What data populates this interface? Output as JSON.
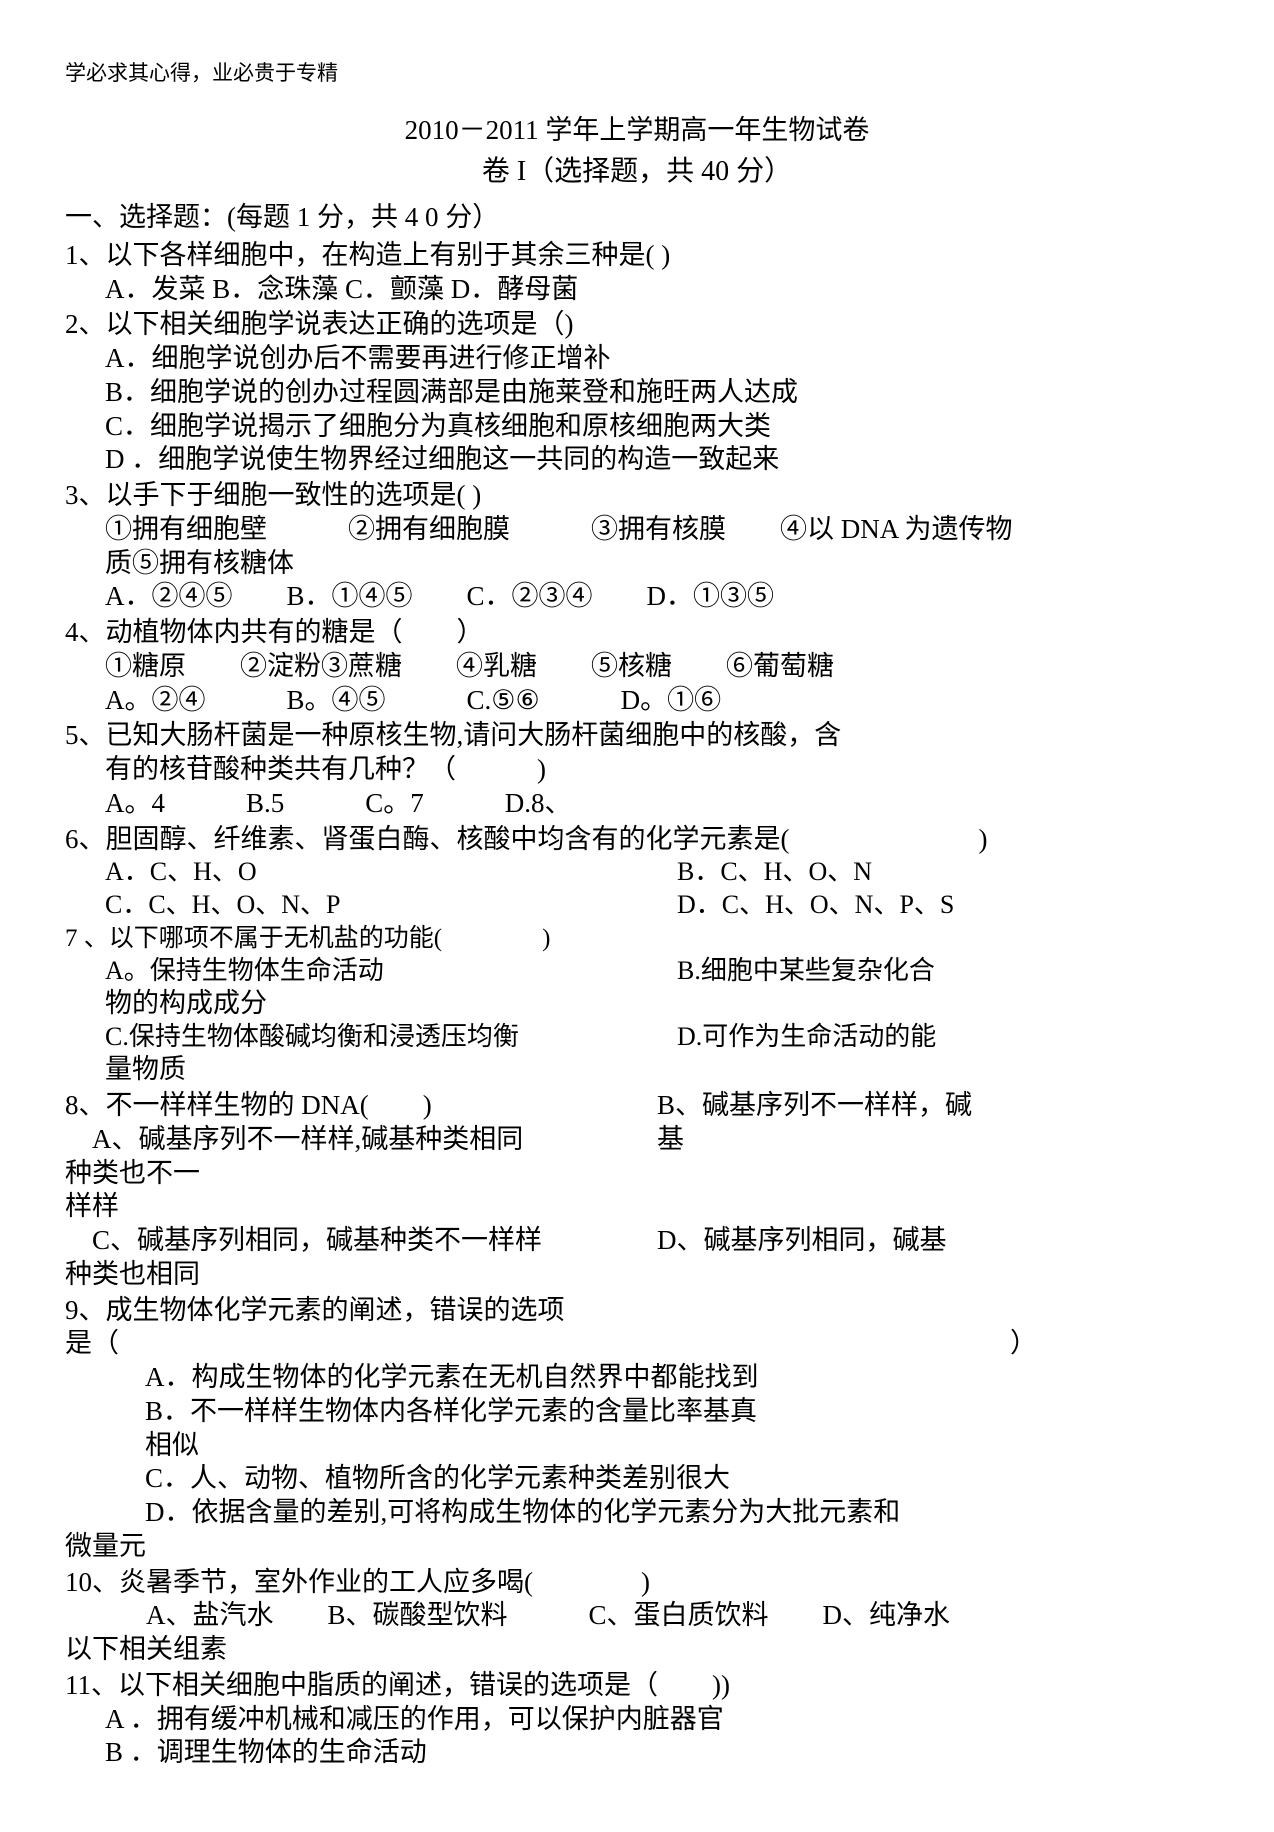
{
  "header_note": "学必求其心得，业必贵于专精",
  "title_main": "2010－2011 学年上学期高一年生物试卷",
  "title_sub": "卷 I（选择题，共 40 分）",
  "section_header": "一、选择题：(每题 1 分，共 4 0 分）",
  "q1": {
    "stem": "1、以下各样细胞中，在构造上有别于其余三种是( )",
    "opts": "A．发菜 B．念珠藻 C．颤藻 D．酵母菌"
  },
  "q2": {
    "stem": "2、以下相关细胞学说表达正确的选项是（)",
    "a": "A．细胞学说创办后不需要再进行修正增补",
    "b": "B．细胞学说的创办过程圆满部是由施莱登和施旺两人达成",
    "c": "C．细胞学说揭示了细胞分为真核细胞和原核细胞两大类",
    "d": "D ．细胞学说使生物界经过细胞这一共同的构造一致起来"
  },
  "q3": {
    "stem": "3、以手下于细胞一致性的选项是( )",
    "items": "①拥有细胞壁   ②拥有细胞膜   ③拥有核膜  ④以 DNA 为遗传物",
    "items2": "质⑤拥有核糖体",
    "opts": "A．②④⑤  B．①④⑤  C．②③④  D．①③⑤"
  },
  "q4": {
    "stem": "4、动植物体内共有的糖是（  ）",
    "items": "①糖原  ②淀粉③蔗糖  ④乳糖  ⑤核糖  ⑥葡萄糖",
    "opts": "A。②④   B。④⑤   C.⑤⑥   D。①⑥"
  },
  "q5": {
    "stem1": "5、已知大肠杆菌是一种原核生物,请问大肠杆菌细胞中的核酸，含",
    "stem2": "有的核苷酸种类共有几种？（   )",
    "opts": "A。4   B.5   C。7   D.8、"
  },
  "q6": {
    "stem": "6、胆固醇、纤维素、肾蛋白酶、核酸中均含有的化学元素是(       )",
    "ab": {
      "a": "A．C、H、O",
      "b": "B．C、H、O、N"
    },
    "cd": {
      "c": "C．C、H、O、N、P",
      "d": "D．C、H、O、N、P、S"
    }
  },
  "q7": {
    "stem": "7 、以下哪项不属于无机盐的功能(    )",
    "ab": {
      "a": "A。保持生物体生命活动",
      "b": "B.细胞中某些复杂化合"
    },
    "ab2": "物的构成成分",
    "cd": {
      "c": "C.保持生物体酸碱均衡和浸透压均衡",
      "d": "D.可作为生命活动的能"
    },
    "cd2": "量物质"
  },
  "q8": {
    "stem_left": "8、不一样样生物的 DNA(  )",
    "stem_right": "B、碱基序列不一样样，碱",
    "a1": " A、碱基序列不一样样,碱基种类相同",
    "a1r": "基",
    "a2": "种类也不一",
    "a3": "样样",
    "cd": {
      "c": " C、碱基序列相同，碱基种类不一样样",
      "d": "D、碱基序列相同，碱基"
    },
    "cd2": "种类也相同"
  },
  "q9": {
    "stem1": "9、成生物体化学元素的阐述，错误的选项",
    "stem2": "是（                                 ）",
    "a": "A．构成生物体的化学元素在无机自然界中都能找到",
    "b1": "B．不一样样生物体内各样化学元素的含量比率基真",
    "b2": "相似",
    "c": "C．人、动物、植物所含的化学元素种类差别很大",
    "d1": "D．依据含量的差别,可将构成生物体的化学元素分为大批元素和",
    "d2": "微量元"
  },
  "q10": {
    "stem": "10、炎暑季节，室外作业的工人应多喝(    )",
    "opts": "   A、盐汽水  B、碳酸型饮料   C、蛋白质饮料  D、纯净水",
    "extra": "以下相关组素"
  },
  "q11": {
    "stem": "11、以下相关细胞中脂质的阐述，错误的选项是（  ))",
    "a": "A ．拥有缓冲机械和减压的作用，可以保护内脏器官",
    "b": "B ．调理生物体的生命活动"
  }
}
